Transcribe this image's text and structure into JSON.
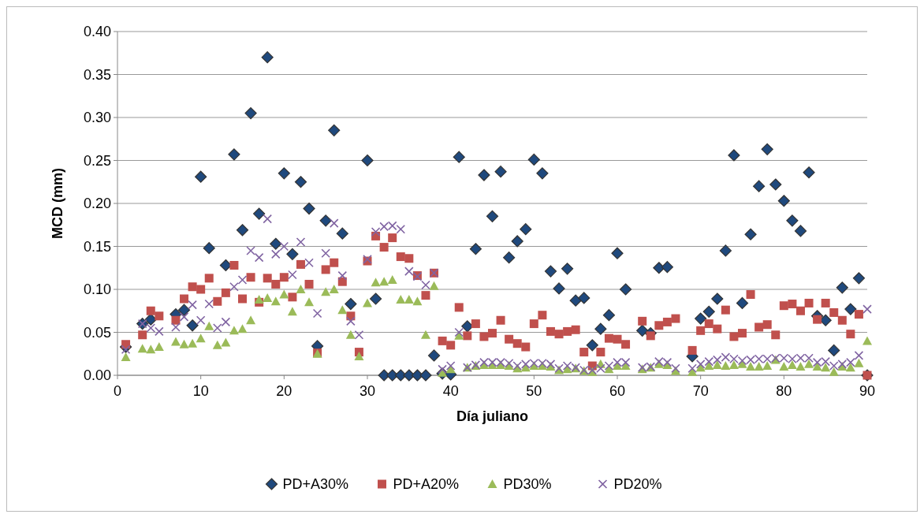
{
  "chart_data": {
    "type": "scatter",
    "xlabel": "Día juliano",
    "ylabel": "MCD (mm)",
    "xlim": [
      0,
      90
    ],
    "xticks": [
      0,
      10,
      20,
      30,
      40,
      50,
      60,
      70,
      80,
      90
    ],
    "ylim": [
      0,
      0.4
    ],
    "yticks": [
      {
        "value": 0,
        "label": "0.00"
      },
      {
        "value": 0.05,
        "label": "0.05"
      },
      {
        "value": 0.1,
        "label": "0.10"
      },
      {
        "value": 0.15,
        "label": "0.15"
      },
      {
        "value": 0.2,
        "label": "0.20"
      },
      {
        "value": 0.25,
        "label": "0.25"
      },
      {
        "value": 0.3,
        "label": "0.30"
      },
      {
        "value": 0.35,
        "label": "0.35"
      },
      {
        "value": 0.4,
        "label": "0.40"
      }
    ],
    "grid": "y",
    "legend": "bottom",
    "x": [
      1,
      3,
      4,
      5,
      7,
      8,
      9,
      10,
      11,
      12,
      13,
      14,
      15,
      16,
      17,
      18,
      19,
      20,
      21,
      22,
      23,
      24,
      25,
      26,
      27,
      28,
      29,
      30,
      31,
      32,
      33,
      34,
      35,
      36,
      37,
      38,
      39,
      40,
      41,
      42,
      43,
      44,
      45,
      46,
      47,
      48,
      49,
      50,
      51,
      52,
      53,
      54,
      55,
      56,
      57,
      58,
      59,
      60,
      61,
      63,
      64,
      65,
      66,
      67,
      69,
      70,
      71,
      72,
      73,
      74,
      75,
      76,
      77,
      78,
      79,
      80,
      81,
      82,
      83,
      84,
      85,
      86,
      87,
      88,
      89,
      90
    ],
    "series": [
      {
        "name": "PD+A30%",
        "color": "#1f497d",
        "marker": "diamond",
        "values": [
          0.033,
          0.06,
          0.065,
          null,
          0.071,
          0.076,
          0.058,
          0.231,
          0.148,
          null,
          0.128,
          0.257,
          0.169,
          0.305,
          0.188,
          0.37,
          0.153,
          0.235,
          0.141,
          0.225,
          0.194,
          0.034,
          0.18,
          0.285,
          0.165,
          0.083,
          null,
          0.25,
          0.089,
          0,
          0,
          0,
          0,
          0,
          0,
          0.023,
          0.002,
          0.001,
          0.254,
          0.057,
          0.147,
          0.233,
          0.185,
          0.237,
          0.137,
          0.156,
          0.17,
          0.251,
          0.235,
          0.121,
          0.101,
          0.124,
          0.087,
          0.09,
          0.035,
          0.054,
          0.07,
          0.142,
          0.1,
          0.052,
          0.049,
          0.125,
          0.126,
          null,
          0.022,
          0.066,
          0.074,
          0.089,
          0.145,
          0.256,
          0.084,
          0.164,
          0.22,
          0.263,
          0.222,
          0.203,
          0.18,
          0.168,
          0.236,
          0.069,
          0.064,
          0.029,
          0.102,
          0.077,
          0.113,
          0
        ]
      },
      {
        "name": "PD+A20%",
        "color": "#c0504d",
        "marker": "square",
        "values": [
          0.036,
          0.047,
          0.075,
          0.069,
          0.064,
          0.089,
          0.103,
          0.1,
          0.113,
          0.086,
          0.096,
          0.128,
          0.089,
          0.114,
          0.085,
          0.113,
          0.106,
          0.114,
          0.091,
          0.129,
          0.106,
          0.026,
          0.123,
          0.131,
          0.109,
          0.069,
          0.027,
          0.133,
          0.162,
          0.149,
          0.16,
          0.138,
          0.136,
          0.116,
          0.093,
          0.119,
          0.04,
          0.035,
          0.079,
          0.046,
          0.06,
          0.045,
          0.049,
          0.064,
          0.042,
          0.037,
          0.033,
          0.06,
          0.07,
          0.051,
          0.048,
          0.051,
          0.053,
          0.027,
          0.011,
          0.027,
          0.043,
          0.042,
          0.036,
          0.063,
          0.046,
          0.058,
          0.062,
          0.066,
          0.029,
          0.052,
          0.06,
          0.054,
          0.076,
          0.045,
          0.049,
          0.094,
          0.056,
          0.059,
          0.047,
          0.081,
          0.083,
          0.075,
          0.084,
          0.065,
          0.084,
          0.073,
          0.064,
          0.048,
          0.071,
          0
        ]
      },
      {
        "name": "PD30%",
        "color": "#9bbb59",
        "marker": "triangle",
        "values": [
          0.021,
          0.031,
          0.03,
          0.033,
          0.039,
          0.036,
          0.037,
          0.043,
          0.057,
          0.035,
          0.038,
          0.052,
          0.054,
          0.064,
          0.088,
          0.09,
          0.086,
          0.094,
          0.074,
          0.1,
          0.085,
          0.025,
          0.097,
          0.1,
          0.076,
          0.047,
          0.022,
          0.084,
          0.108,
          0.109,
          0.111,
          0.088,
          0.088,
          0.086,
          0.047,
          0.104,
          0.003,
          0.007,
          0.046,
          0.009,
          0.011,
          0.012,
          0.012,
          0.012,
          0.011,
          0.008,
          0.009,
          0.011,
          0.011,
          0.01,
          0.006,
          0.007,
          0.008,
          0.005,
          0.004,
          0.013,
          0.007,
          0.011,
          0.011,
          0.007,
          0.009,
          0.013,
          0.012,
          0.005,
          0.004,
          0.009,
          0.011,
          0.012,
          0.011,
          0.012,
          0.013,
          0.01,
          0.01,
          0.011,
          0.018,
          0.01,
          0.012,
          0.01,
          0.013,
          0.01,
          0.009,
          0.004,
          0.01,
          0.009,
          0.014,
          0.04
        ]
      },
      {
        "name": "PD20%",
        "color": "#8064a2",
        "marker": "cross",
        "values": [
          0.03,
          0.06,
          0.055,
          0.051,
          0.056,
          0.068,
          0.082,
          0.064,
          0.083,
          0.055,
          0.062,
          0.103,
          0.111,
          0.145,
          0.137,
          0.182,
          0.141,
          0.15,
          0.117,
          0.155,
          0.131,
          0.072,
          0.142,
          0.177,
          0.116,
          0.063,
          0.047,
          0.135,
          0.167,
          0.173,
          0.174,
          0.17,
          0.121,
          0.115,
          0.105,
          0.119,
          0.007,
          0.011,
          0.05,
          0.009,
          0.012,
          0.015,
          0.015,
          0.015,
          0.014,
          0.011,
          0.013,
          0.014,
          0.014,
          0.013,
          0.008,
          0.011,
          0.009,
          0.006,
          0.006,
          0.008,
          0.011,
          0.015,
          0.015,
          0.009,
          0.01,
          0.016,
          0.015,
          0.008,
          0.008,
          0.013,
          0.016,
          0.018,
          0.021,
          0.019,
          0.017,
          0.018,
          0.019,
          0.019,
          0.02,
          0.02,
          0.019,
          0.02,
          0.02,
          0.015,
          0.016,
          0.011,
          0.013,
          0.015,
          0.023,
          0.077
        ]
      }
    ]
  }
}
